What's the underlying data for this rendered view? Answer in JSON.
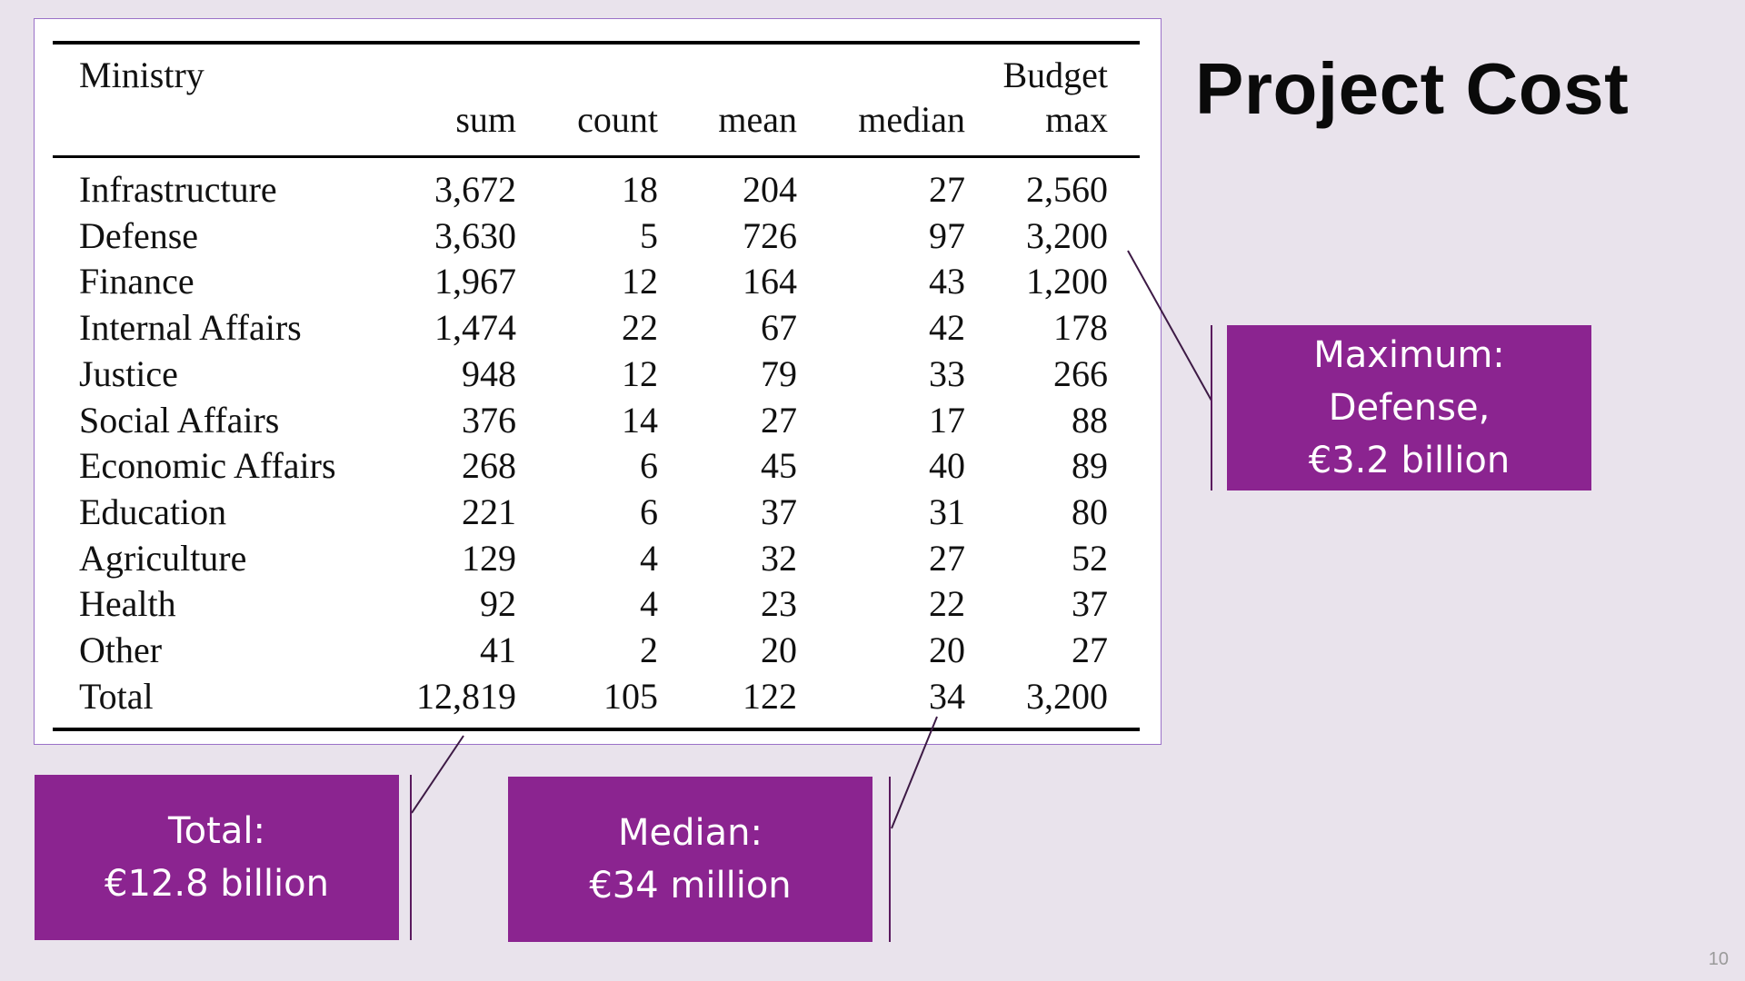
{
  "title": "Project Cost",
  "table": {
    "header": {
      "name": "Ministry",
      "group": "Budget",
      "cols": [
        "sum",
        "count",
        "mean",
        "median",
        "max"
      ]
    },
    "rows": [
      {
        "name": "Infrastructure",
        "sum": "3,672",
        "count": "18",
        "mean": "204",
        "median": "27",
        "max": "2,560"
      },
      {
        "name": "Defense",
        "sum": "3,630",
        "count": "5",
        "mean": "726",
        "median": "97",
        "max": "3,200"
      },
      {
        "name": "Finance",
        "sum": "1,967",
        "count": "12",
        "mean": "164",
        "median": "43",
        "max": "1,200"
      },
      {
        "name": "Internal Affairs",
        "sum": "1,474",
        "count": "22",
        "mean": "67",
        "median": "42",
        "max": "178"
      },
      {
        "name": "Justice",
        "sum": "948",
        "count": "12",
        "mean": "79",
        "median": "33",
        "max": "266"
      },
      {
        "name": "Social Affairs",
        "sum": "376",
        "count": "14",
        "mean": "27",
        "median": "17",
        "max": "88"
      },
      {
        "name": "Economic Affairs",
        "sum": "268",
        "count": "6",
        "mean": "45",
        "median": "40",
        "max": "89"
      },
      {
        "name": "Education",
        "sum": "221",
        "count": "6",
        "mean": "37",
        "median": "31",
        "max": "80"
      },
      {
        "name": "Agriculture",
        "sum": "129",
        "count": "4",
        "mean": "32",
        "median": "27",
        "max": "52"
      },
      {
        "name": "Health",
        "sum": "92",
        "count": "4",
        "mean": "23",
        "median": "22",
        "max": "37"
      },
      {
        "name": "Other",
        "sum": "41",
        "count": "2",
        "mean": "20",
        "median": "20",
        "max": "27"
      },
      {
        "name": "Total",
        "sum": "12,819",
        "count": "105",
        "mean": "122",
        "median": "34",
        "max": "3,200"
      }
    ]
  },
  "callouts": {
    "maximum": [
      "Maximum:",
      "Defense,",
      "€3.2 billion"
    ],
    "total": [
      "Total:",
      "€12.8 billion"
    ],
    "median": [
      "Median:",
      "€34 million"
    ]
  },
  "colors": {
    "callout_bg": "#8b2490",
    "background": "#e9e3ec",
    "frame": "#9b72c8"
  },
  "page_number": "10"
}
